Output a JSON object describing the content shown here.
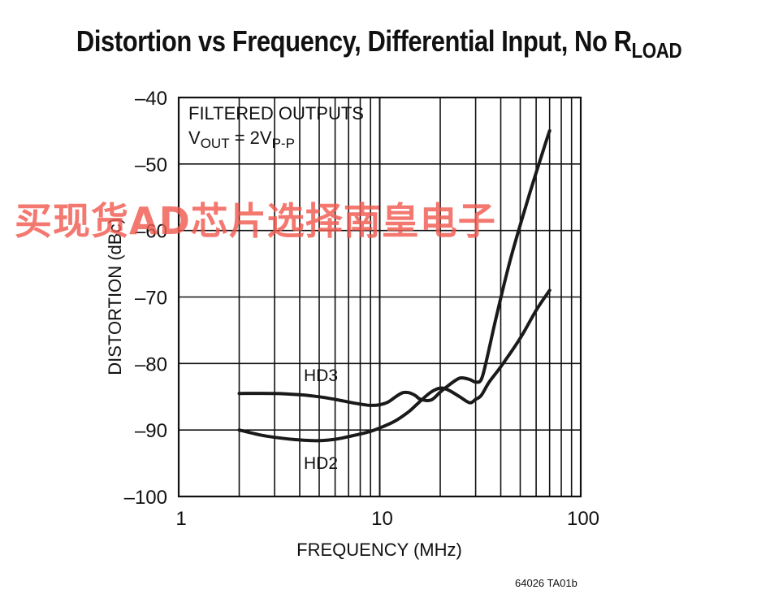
{
  "title": "Distortion vs Frequency, Differential Input, No R",
  "title_subscript": "LOAD",
  "note_line1": "FILTERED OUTPUTS",
  "note_line2_main": "V",
  "note_line2_sub1": "OUT",
  "note_line2_mid": " = 2V",
  "note_line2_sub2": "P-P",
  "figure_id": "64026 TA01b",
  "watermark": "买现货AD芯片选择南皇电子",
  "colors": {
    "curve": "#1a1a1a",
    "grid": "#111111",
    "watermark": "#f05a50"
  },
  "chart_data": {
    "type": "line",
    "xlabel": "FREQUENCY (MHz)",
    "ylabel": "DISTORTION (dBc)",
    "xscale": "log",
    "xlim": [
      1,
      100
    ],
    "ylim": [
      -100,
      -40
    ],
    "xticks": [
      1,
      10,
      100
    ],
    "xtick_labels": [
      "1",
      "10",
      "100"
    ],
    "yticks": [
      -40,
      -50,
      -60,
      -70,
      -80,
      -90,
      -100
    ],
    "ytick_labels": [
      "–40",
      "–50",
      "–60",
      "–70",
      "–80",
      "–90",
      "–100"
    ],
    "grid": true,
    "series": [
      {
        "name": "HD3",
        "x": [
          2,
          3,
          4,
          5,
          6,
          7,
          8,
          9,
          10,
          11,
          12,
          13,
          14,
          15,
          16,
          18,
          20,
          22,
          25,
          28,
          30,
          32,
          34,
          38,
          45,
          55,
          65,
          70
        ],
        "y": [
          -84.5,
          -84.5,
          -84.7,
          -85.0,
          -85.4,
          -85.8,
          -86.1,
          -86.3,
          -86.2,
          -85.8,
          -85.0,
          -84.4,
          -84.4,
          -84.8,
          -85.4,
          -85.5,
          -84.3,
          -83.3,
          -82.2,
          -82.4,
          -82.8,
          -82.4,
          -79.5,
          -73.0,
          -64.0,
          -55.0,
          -48.0,
          -45.0
        ]
      },
      {
        "name": "HD2",
        "x": [
          2,
          2.5,
          3,
          4,
          5,
          6,
          7,
          8,
          9,
          10,
          12,
          14,
          16,
          18,
          20,
          22,
          25,
          28,
          30,
          32,
          35,
          40,
          50,
          60,
          70
        ],
        "y": [
          -90.0,
          -90.7,
          -91.1,
          -91.5,
          -91.6,
          -91.4,
          -91.0,
          -90.6,
          -90.2,
          -89.7,
          -88.6,
          -87.2,
          -85.6,
          -84.3,
          -83.7,
          -84.0,
          -85.0,
          -85.9,
          -85.4,
          -84.8,
          -82.8,
          -80.5,
          -76.2,
          -72.0,
          -69.0
        ]
      }
    ],
    "annotations": [
      "HD3",
      "HD2"
    ]
  }
}
